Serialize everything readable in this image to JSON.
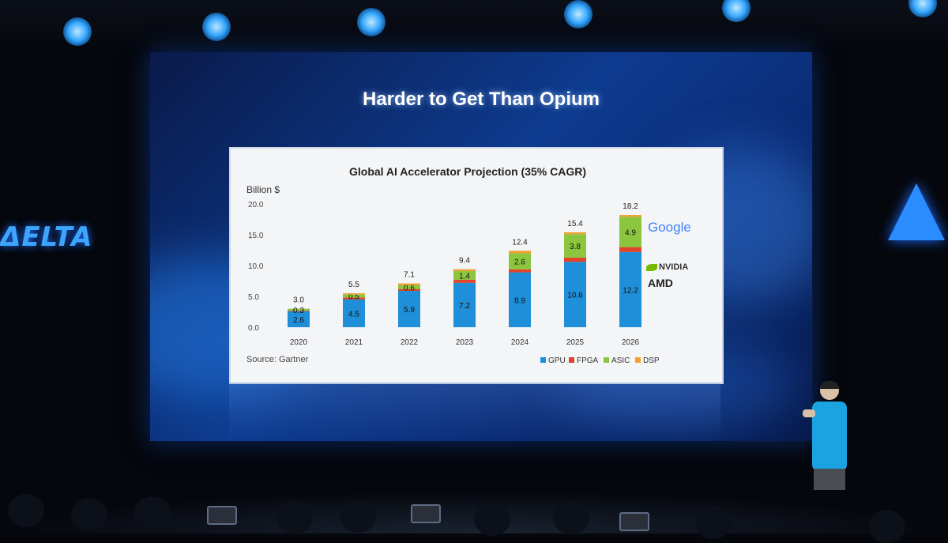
{
  "slide": {
    "title": "Harder to Get Than Opium"
  },
  "venue": {
    "left_logo": "ΔELTA"
  },
  "logos": {
    "google": "Google",
    "nvidia": "NVIDIA",
    "amd": "AMD"
  },
  "colors": {
    "gpu": "#1e8fd8",
    "fpga": "#e0442c",
    "asic": "#8cc63f",
    "dsp": "#f0a030"
  },
  "chart_data": {
    "type": "bar",
    "title": "Global AI Accelerator Projection (35% CAGR)",
    "ylabel": "Billion $",
    "source": "Source: Gartner",
    "ylim": [
      0,
      20
    ],
    "yticks": [
      "0.0",
      "5.0",
      "10.0",
      "15.0",
      "20.0"
    ],
    "categories": [
      "2020",
      "2021",
      "2022",
      "2023",
      "2024",
      "2025",
      "2026"
    ],
    "totals": [
      "3.0",
      "5.5",
      "7.1",
      "9.4",
      "12.4",
      "15.4",
      "18.2"
    ],
    "series": [
      {
        "name": "GPU",
        "values": [
          2.6,
          4.5,
          5.9,
          7.2,
          8.9,
          10.6,
          12.2
        ],
        "labels": [
          "2.6",
          "4.5",
          "5.9",
          "7.2",
          "8.9",
          "10.6",
          "12.2"
        ]
      },
      {
        "name": "FPGA",
        "values": [
          0.1,
          0.3,
          0.3,
          0.5,
          0.5,
          0.7,
          0.8
        ],
        "labels": [
          "",
          "",
          "",
          "",
          "",
          "",
          ""
        ]
      },
      {
        "name": "ASIC",
        "values": [
          0.3,
          0.5,
          0.6,
          1.4,
          2.6,
          3.8,
          4.9
        ],
        "labels": [
          "0.3",
          "0.5",
          "0.6",
          "1.4",
          "2.6",
          "3.8",
          "4.9"
        ]
      },
      {
        "name": "DSP",
        "values": [
          0.0,
          0.2,
          0.3,
          0.3,
          0.4,
          0.3,
          0.3
        ],
        "labels": [
          "",
          "",
          "",
          "",
          "",
          "",
          ""
        ]
      }
    ],
    "legend": "bottom-right",
    "grid": false
  }
}
